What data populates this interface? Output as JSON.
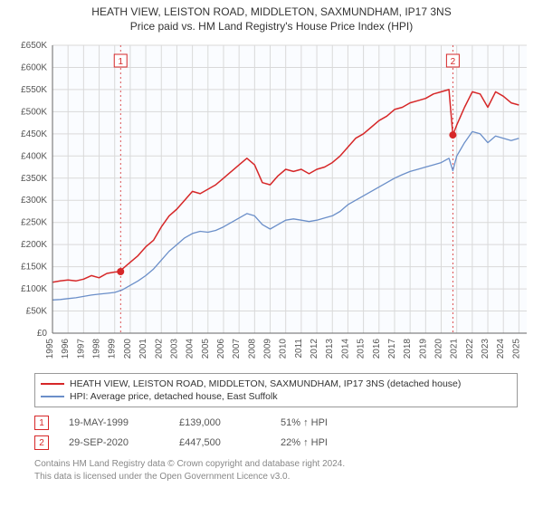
{
  "title_line1": "HEATH VIEW, LEISTON ROAD, MIDDLETON, SAXMUNDHAM, IP17 3NS",
  "title_line2": "Price paid vs. HM Land Registry's House Price Index (HPI)",
  "chart": {
    "type": "line",
    "background_color": "#ffffff",
    "plot_bg_tint": "#fafcff",
    "grid_color": "#d9d9d9",
    "axis_color": "#666666",
    "tick_label_color": "#555555",
    "tick_fontsize": 10,
    "x_years": [
      1995,
      1996,
      1997,
      1998,
      1999,
      2000,
      2001,
      2002,
      2003,
      2004,
      2005,
      2006,
      2007,
      2008,
      2009,
      2010,
      2011,
      2012,
      2013,
      2014,
      2015,
      2016,
      2017,
      2018,
      2019,
      2020,
      2021,
      2022,
      2023,
      2024,
      2025
    ],
    "xlim": [
      1995,
      2025.5
    ],
    "y_ticks": [
      0,
      50000,
      100000,
      150000,
      200000,
      250000,
      300000,
      350000,
      400000,
      450000,
      500000,
      550000,
      600000,
      650000
    ],
    "y_tick_labels": [
      "£0",
      "£50K",
      "£100K",
      "£150K",
      "£200K",
      "£250K",
      "£300K",
      "£350K",
      "£400K",
      "£450K",
      "£500K",
      "£550K",
      "£600K",
      "£650K"
    ],
    "ylim": [
      0,
      650000
    ],
    "series": [
      {
        "name": "price_paid",
        "label": "HEATH VIEW, LEISTON ROAD, MIDDLETON, SAXMUNDHAM, IP17 3NS (detached house)",
        "color": "#d62728",
        "line_width": 1.5,
        "x": [
          1995,
          1995.5,
          1996,
          1996.5,
          1997,
          1997.5,
          1998,
          1998.5,
          1999,
          1999.38,
          1999.5,
          2000,
          2000.5,
          2001,
          2001.5,
          2002,
          2002.5,
          2003,
          2003.5,
          2004,
          2004.5,
          2005,
          2005.5,
          2006,
          2006.5,
          2007,
          2007.5,
          2008,
          2008.5,
          2009,
          2009.5,
          2010,
          2010.5,
          2011,
          2011.5,
          2012,
          2012.5,
          2013,
          2013.5,
          2014,
          2014.5,
          2015,
          2015.5,
          2016,
          2016.5,
          2017,
          2017.5,
          2018,
          2018.5,
          2019,
          2019.5,
          2020,
          2020.5,
          2020.75,
          2021,
          2021.5,
          2022,
          2022.5,
          2023,
          2023.5,
          2024,
          2024.5,
          2025
        ],
        "y": [
          115000,
          118000,
          120000,
          118000,
          122000,
          130000,
          125000,
          135000,
          138000,
          139000,
          145000,
          160000,
          175000,
          195000,
          210000,
          240000,
          265000,
          280000,
          300000,
          320000,
          315000,
          325000,
          335000,
          350000,
          365000,
          380000,
          395000,
          380000,
          340000,
          335000,
          355000,
          370000,
          365000,
          370000,
          360000,
          370000,
          375000,
          385000,
          400000,
          420000,
          440000,
          450000,
          465000,
          480000,
          490000,
          505000,
          510000,
          520000,
          525000,
          530000,
          540000,
          545000,
          550000,
          447500,
          470000,
          510000,
          545000,
          540000,
          510000,
          545000,
          535000,
          520000,
          515000
        ]
      },
      {
        "name": "hpi",
        "label": "HPI: Average price, detached house, East Suffolk",
        "color": "#6b8fc9",
        "line_width": 1.3,
        "x": [
          1995,
          1995.5,
          1996,
          1996.5,
          1997,
          1997.5,
          1998,
          1998.5,
          1999,
          1999.5,
          2000,
          2000.5,
          2001,
          2001.5,
          2002,
          2002.5,
          2003,
          2003.5,
          2004,
          2004.5,
          2005,
          2005.5,
          2006,
          2006.5,
          2007,
          2007.5,
          2008,
          2008.5,
          2009,
          2009.5,
          2010,
          2010.5,
          2011,
          2011.5,
          2012,
          2012.5,
          2013,
          2013.5,
          2014,
          2014.5,
          2015,
          2015.5,
          2016,
          2016.5,
          2017,
          2017.5,
          2018,
          2018.5,
          2019,
          2019.5,
          2020,
          2020.5,
          2020.75,
          2021,
          2021.5,
          2022,
          2022.5,
          2023,
          2023.5,
          2024,
          2024.5,
          2025
        ],
        "y": [
          75000,
          76000,
          78000,
          80000,
          83000,
          86000,
          88000,
          90000,
          92000,
          98000,
          108000,
          118000,
          130000,
          145000,
          165000,
          185000,
          200000,
          215000,
          225000,
          230000,
          228000,
          232000,
          240000,
          250000,
          260000,
          270000,
          265000,
          245000,
          235000,
          245000,
          255000,
          258000,
          255000,
          252000,
          255000,
          260000,
          265000,
          275000,
          290000,
          300000,
          310000,
          320000,
          330000,
          340000,
          350000,
          358000,
          365000,
          370000,
          375000,
          380000,
          385000,
          395000,
          367000,
          400000,
          430000,
          455000,
          450000,
          430000,
          445000,
          440000,
          435000,
          440000
        ]
      }
    ],
    "markers": [
      {
        "n": "1",
        "x": 1999.38,
        "y": 139000,
        "color": "#d62728"
      },
      {
        "n": "2",
        "x": 2020.75,
        "y": 447500,
        "color": "#d62728"
      }
    ],
    "marker_vline_color": "#d62728",
    "marker_vline_dash": "2,3",
    "marker_vline_width": 0.8
  },
  "legend": {
    "rows": [
      {
        "color": "#d62728",
        "text": "HEATH VIEW, LEISTON ROAD, MIDDLETON, SAXMUNDHAM, IP17 3NS (detached house)"
      },
      {
        "color": "#6b8fc9",
        "text": "HPI: Average price, detached house, East Suffolk"
      }
    ]
  },
  "marker_table": [
    {
      "n": "1",
      "date": "19-MAY-1999",
      "price": "£139,000",
      "delta": "51% ↑ HPI"
    },
    {
      "n": "2",
      "date": "29-SEP-2020",
      "price": "£447,500",
      "delta": "22% ↑ HPI"
    }
  ],
  "footnote_line1": "Contains HM Land Registry data © Crown copyright and database right 2024.",
  "footnote_line2": "This data is licensed under the Open Government Licence v3.0."
}
